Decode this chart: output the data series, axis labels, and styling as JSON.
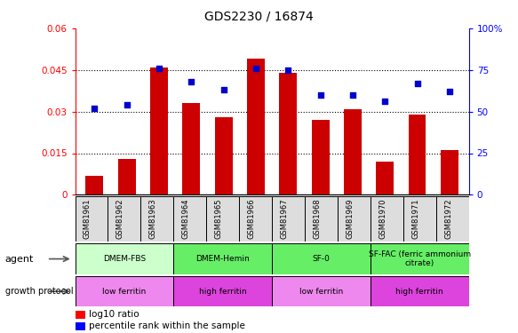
{
  "title": "GDS2230 / 16874",
  "samples": [
    "GSM81961",
    "GSM81962",
    "GSM81963",
    "GSM81964",
    "GSM81965",
    "GSM81966",
    "GSM81967",
    "GSM81968",
    "GSM81969",
    "GSM81970",
    "GSM81971",
    "GSM81972"
  ],
  "log10_ratio": [
    0.007,
    0.013,
    0.046,
    0.033,
    0.028,
    0.049,
    0.044,
    0.027,
    0.031,
    0.012,
    0.029,
    0.016
  ],
  "percentile_rank": [
    52,
    54,
    76,
    68,
    63,
    76,
    75,
    60,
    60,
    56,
    67,
    62
  ],
  "ylim_left": [
    0,
    0.06
  ],
  "ylim_right": [
    0,
    100
  ],
  "yticks_left": [
    0,
    0.015,
    0.03,
    0.045,
    0.06
  ],
  "ytick_labels_left": [
    "0",
    "0.015",
    "0.03",
    "0.045",
    "0.06"
  ],
  "yticks_right": [
    0,
    25,
    50,
    75,
    100
  ],
  "ytick_labels_right": [
    "0",
    "25",
    "50",
    "75",
    "100%"
  ],
  "bar_color": "#cc0000",
  "dot_color": "#0000cc",
  "agent_groups": [
    {
      "label": "DMEM-FBS",
      "start": 0,
      "end": 3,
      "color": "#ccffcc"
    },
    {
      "label": "DMEM-Hemin",
      "start": 3,
      "end": 6,
      "color": "#66ee66"
    },
    {
      "label": "SF-0",
      "start": 6,
      "end": 9,
      "color": "#66ee66"
    },
    {
      "label": "SF-FAC (ferric ammonium\ncitrate)",
      "start": 9,
      "end": 12,
      "color": "#66ee66"
    }
  ],
  "growth_groups": [
    {
      "label": "low ferritin",
      "start": 0,
      "end": 3,
      "color": "#ee88ee"
    },
    {
      "label": "high ferritin",
      "start": 3,
      "end": 6,
      "color": "#dd44dd"
    },
    {
      "label": "low ferritin",
      "start": 6,
      "end": 9,
      "color": "#ee88ee"
    },
    {
      "label": "high ferritin",
      "start": 9,
      "end": 12,
      "color": "#dd44dd"
    }
  ]
}
